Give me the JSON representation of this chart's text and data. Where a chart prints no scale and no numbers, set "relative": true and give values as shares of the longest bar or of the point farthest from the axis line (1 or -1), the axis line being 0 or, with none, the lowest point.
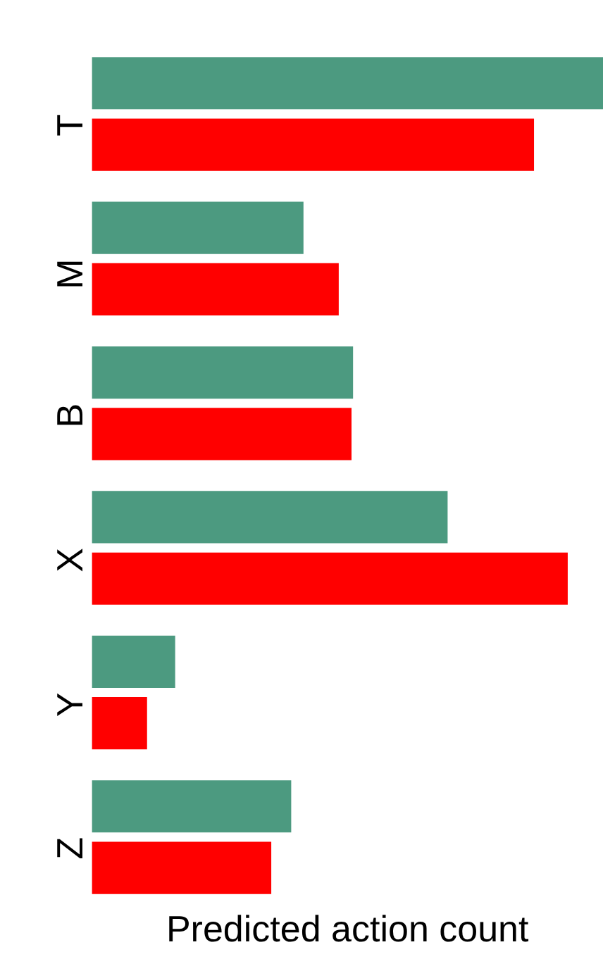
{
  "chart_data": {
    "type": "bar",
    "orientation": "horizontal",
    "relative": true,
    "xlabel": "Predicted action count",
    "categories": [
      "T",
      "M",
      "B",
      "X",
      "Y",
      "Z"
    ],
    "series": [
      {
        "color": "#4c9a80",
        "values": [
          1,
          0.414,
          0.511,
          0.696,
          0.163,
          0.39
        ]
      },
      {
        "color": "#ff0000",
        "values": [
          0.865,
          0.483,
          0.508,
          0.931,
          0.108,
          0.351
        ]
      }
    ],
    "grid": false,
    "legend": false
  }
}
